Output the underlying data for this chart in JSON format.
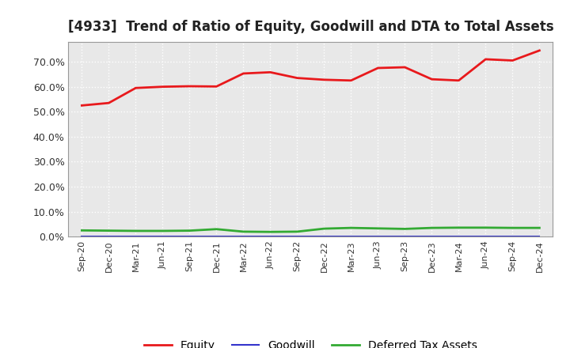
{
  "title": "[4933]  Trend of Ratio of Equity, Goodwill and DTA to Total Assets",
  "x_labels": [
    "Sep-20",
    "Dec-20",
    "Mar-21",
    "Jun-21",
    "Sep-21",
    "Dec-21",
    "Mar-22",
    "Jun-22",
    "Sep-22",
    "Dec-22",
    "Mar-23",
    "Jun-23",
    "Sep-23",
    "Dec-23",
    "Mar-24",
    "Jun-24",
    "Sep-24",
    "Dec-24"
  ],
  "equity": [
    52.5,
    53.5,
    59.5,
    60.0,
    60.2,
    60.1,
    65.3,
    65.8,
    63.5,
    62.8,
    62.5,
    67.5,
    67.8,
    63.0,
    62.5,
    71.0,
    70.5,
    74.5
  ],
  "goodwill": [
    0.2,
    0.2,
    0.2,
    0.2,
    0.2,
    0.2,
    0.2,
    0.2,
    0.2,
    0.2,
    0.2,
    0.2,
    0.2,
    0.2,
    0.2,
    0.2,
    0.2,
    0.2
  ],
  "dta": [
    2.5,
    2.4,
    2.3,
    2.3,
    2.4,
    3.0,
    2.0,
    1.9,
    2.0,
    3.2,
    3.5,
    3.3,
    3.1,
    3.5,
    3.6,
    3.6,
    3.5,
    3.5
  ],
  "equity_color": "#e8191c",
  "goodwill_color": "#3333cc",
  "dta_color": "#33aa33",
  "ylim": [
    0,
    78
  ],
  "yticks": [
    0,
    10,
    20,
    30,
    40,
    50,
    60,
    70
  ],
  "ytick_labels": [
    "0.0%",
    "10.0%",
    "20.0%",
    "30.0%",
    "40.0%",
    "50.0%",
    "60.0%",
    "70.0%"
  ],
  "background_color": "#ffffff",
  "plot_bg_color": "#e8e8e8",
  "grid_color": "#ffffff",
  "title_fontsize": 12,
  "legend_labels": [
    "Equity",
    "Goodwill",
    "Deferred Tax Assets"
  ]
}
